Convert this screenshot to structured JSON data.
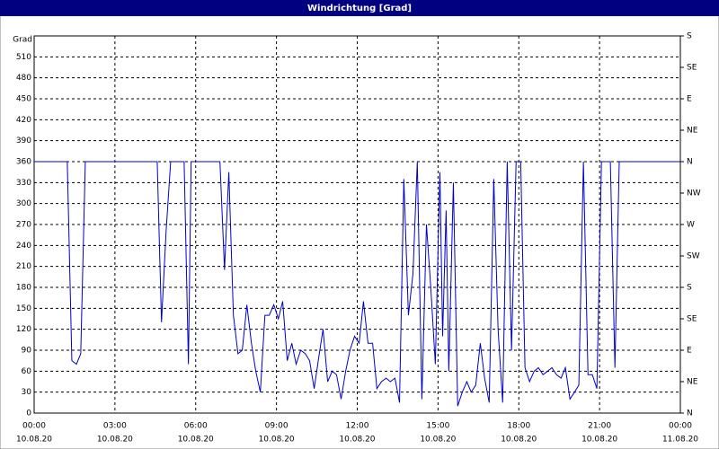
{
  "chart_data": {
    "type": "line",
    "window_title": "Windrichtung [Grad]",
    "ylabel": "Grad",
    "x": [
      0,
      1.23,
      1.4,
      1.57,
      1.73,
      1.9,
      4.57,
      4.73,
      4.9,
      5.07,
      5.57,
      5.73,
      5.83,
      6.9,
      7.07,
      7.23,
      7.4,
      7.57,
      7.73,
      7.9,
      8.07,
      8.23,
      8.4,
      8.57,
      8.73,
      8.9,
      9.07,
      9.23,
      9.4,
      9.57,
      9.73,
      9.9,
      10.07,
      10.23,
      10.4,
      10.57,
      10.73,
      10.9,
      11.07,
      11.23,
      11.4,
      11.57,
      11.73,
      11.9,
      12.07,
      12.23,
      12.4,
      12.57,
      12.73,
      12.9,
      13.07,
      13.23,
      13.4,
      13.57,
      13.73,
      13.9,
      14.07,
      14.23,
      14.4,
      14.57,
      14.73,
      14.9,
      15.07,
      15.17,
      15.3,
      15.4,
      15.57,
      15.73,
      15.9,
      16.07,
      16.23,
      16.4,
      16.57,
      16.73,
      16.9,
      17.07,
      17.23,
      17.4,
      17.57,
      17.73,
      17.9,
      18.07,
      18.23,
      18.4,
      18.57,
      18.73,
      18.9,
      19.07,
      19.23,
      19.4,
      19.57,
      19.73,
      19.9,
      20.07,
      20.23,
      20.4,
      20.57,
      20.73,
      20.9,
      21.07,
      21.4,
      21.57,
      21.73,
      24
    ],
    "values": [
      360,
      360,
      75,
      70,
      85,
      360,
      360,
      130,
      260,
      360,
      360,
      70,
      360,
      360,
      205,
      345,
      140,
      85,
      90,
      155,
      100,
      60,
      30,
      140,
      140,
      155,
      135,
      160,
      75,
      100,
      70,
      90,
      85,
      75,
      35,
      80,
      120,
      45,
      60,
      55,
      20,
      60,
      90,
      110,
      100,
      160,
      100,
      100,
      35,
      45,
      50,
      45,
      50,
      15,
      335,
      140,
      200,
      360,
      20,
      270,
      180,
      70,
      345,
      110,
      290,
      60,
      330,
      10,
      30,
      45,
      30,
      40,
      100,
      50,
      15,
      335,
      120,
      15,
      360,
      90,
      360,
      360,
      65,
      45,
      60,
      65,
      55,
      60,
      65,
      55,
      50,
      65,
      20,
      30,
      40,
      360,
      55,
      55,
      35,
      360,
      360,
      65,
      360,
      360
    ],
    "color": "#0000cc",
    "xlim": [
      0,
      24
    ],
    "xticks": [
      {
        "value": 0,
        "label": "00:00",
        "date": "10.08.20"
      },
      {
        "value": 3,
        "label": "03:00",
        "date": "10.08.20"
      },
      {
        "value": 6,
        "label": "06:00",
        "date": "10.08.20"
      },
      {
        "value": 9,
        "label": "09:00",
        "date": "10.08.20"
      },
      {
        "value": 12,
        "label": "12:00",
        "date": "10.08.20"
      },
      {
        "value": 15,
        "label": "15:00",
        "date": "10.08.20"
      },
      {
        "value": 18,
        "label": "18:00",
        "date": "10.08.20"
      },
      {
        "value": 21,
        "label": "21:00",
        "date": "10.08.20"
      },
      {
        "value": 24,
        "label": "00:00",
        "date": "11.08.20"
      }
    ],
    "ylim": [
      0,
      540
    ],
    "yticks": [
      0,
      30,
      60,
      90,
      120,
      150,
      180,
      210,
      240,
      270,
      300,
      330,
      360,
      390,
      420,
      450,
      480,
      510
    ],
    "y2lim": [
      0,
      540
    ],
    "y2ticks": [
      {
        "value": 0,
        "label": "N"
      },
      {
        "value": 45,
        "label": "NE"
      },
      {
        "value": 90,
        "label": "E"
      },
      {
        "value": 135,
        "label": "SE"
      },
      {
        "value": 180,
        "label": "S"
      },
      {
        "value": 225,
        "label": "SW"
      },
      {
        "value": 270,
        "label": "W"
      },
      {
        "value": 315,
        "label": "NW"
      },
      {
        "value": 360,
        "label": "N"
      },
      {
        "value": 405,
        "label": "NE"
      },
      {
        "value": 450,
        "label": "E"
      },
      {
        "value": 495,
        "label": "SE"
      },
      {
        "value": 540,
        "label": "S"
      }
    ],
    "grid": true
  }
}
